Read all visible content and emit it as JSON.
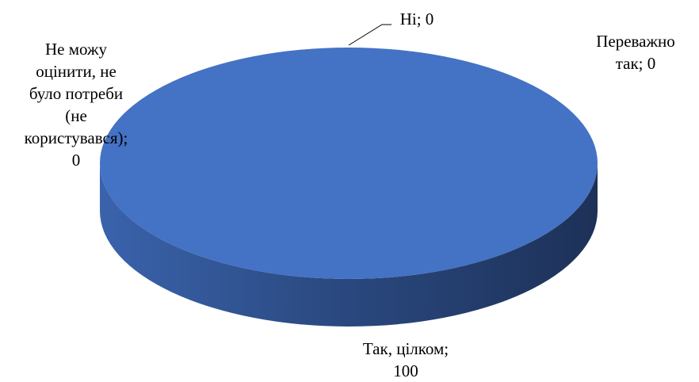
{
  "chart_data": {
    "type": "pie",
    "style": "3d",
    "legend": "none",
    "title": "",
    "slices": [
      {
        "label": "Так, цілком",
        "value": 100,
        "label_lines": [
          "Так, цілком;",
          "100"
        ],
        "color": "#4472C4"
      },
      {
        "label": "Переважно так",
        "value": 0,
        "label_lines": [
          "Переважно",
          "так; 0"
        ],
        "color": "#ED7D31"
      },
      {
        "label": "Ні",
        "value": 0,
        "label_lines": [
          "Ні; 0"
        ],
        "color": "#A5A5A5"
      },
      {
        "label": "Не можу оцінити, не було потреби (не користувався)",
        "value": 0,
        "label_lines": [
          "Не можу",
          "оцінити, не",
          "було потреби",
          "(не",
          "користувався);",
          "0"
        ],
        "color": "#FFC000"
      }
    ]
  }
}
